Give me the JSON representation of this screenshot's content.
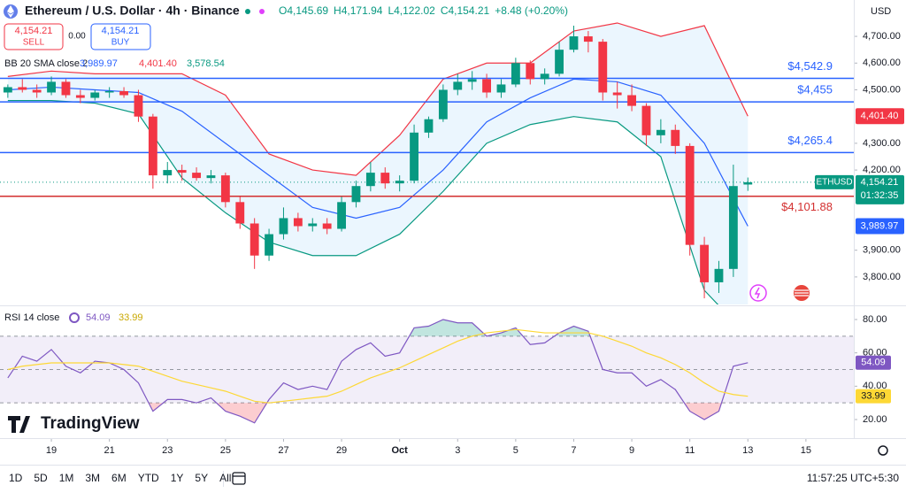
{
  "chart_data": [
    {
      "type": "candlestick",
      "title": "Ethereum / U.S. Dollar · 4h · Binance",
      "ohlc": [
        "O4,145.69",
        "H4,171.94",
        "L4,122.02",
        "C4,154.21",
        "+8.48 (+0.20%)"
      ],
      "currency": "USD",
      "trade": {
        "sell_price": "4,154.21",
        "sell": "SELL",
        "spread": "0.00",
        "buy_price": "4,154.21",
        "buy": "BUY"
      },
      "up_color": "#089981",
      "down_color": "#f23645",
      "xlim": [
        0.23,
        29.65
      ],
      "xticks": [
        {
          "value": 2,
          "label": "19"
        },
        {
          "value": 4,
          "label": "21"
        },
        {
          "value": 6,
          "label": "23"
        },
        {
          "value": 8,
          "label": "25"
        },
        {
          "value": 10,
          "label": "27"
        },
        {
          "value": 12,
          "label": "29"
        },
        {
          "value": 14,
          "label": "Oct"
        },
        {
          "value": 16,
          "label": "3"
        },
        {
          "value": 18,
          "label": "5"
        },
        {
          "value": 20,
          "label": "7"
        },
        {
          "value": 22,
          "label": "9"
        },
        {
          "value": 24,
          "label": "11"
        },
        {
          "value": 26,
          "label": "13"
        },
        {
          "value": 28,
          "label": "15"
        }
      ],
      "ylim": [
        3697,
        4836
      ],
      "yticks": [
        {
          "value": 3800,
          "label": "3,800.00"
        },
        {
          "value": 3900,
          "label": "3,900.00"
        },
        {
          "value": 4200,
          "label": "4,200.00"
        },
        {
          "value": 4300,
          "label": "4,300.00"
        },
        {
          "value": 4500,
          "label": "4,500.00"
        },
        {
          "value": 4600,
          "label": "4,600.00"
        },
        {
          "value": 4700,
          "label": "4,700.00"
        }
      ],
      "x": [
        0.5,
        1,
        1.5,
        2,
        2.5,
        3,
        3.5,
        4,
        4.5,
        5,
        5.5,
        6,
        6.5,
        7,
        7.5,
        8,
        8.5,
        9,
        9.5,
        10,
        10.5,
        11,
        11.5,
        12,
        12.5,
        13,
        13.5,
        14,
        14.5,
        15,
        15.5,
        16,
        16.5,
        17,
        17.5,
        18,
        18.5,
        19,
        19.5,
        20,
        20.5,
        21,
        21.5,
        22,
        22.5,
        23,
        23.5,
        24,
        24.5,
        25,
        25.5,
        26
      ],
      "open": [
        4490,
        4510,
        4500,
        4490,
        4530,
        4480,
        4470,
        4490,
        4495,
        4480,
        4400,
        4180,
        4200,
        4190,
        4170,
        4180,
        4080,
        4000,
        3880,
        3960,
        4020,
        3990,
        4000,
        3980,
        4080,
        4140,
        4190,
        4150,
        4160,
        4340,
        4390,
        4500,
        4530,
        4540,
        4490,
        4520,
        4600,
        4540,
        4560,
        4650,
        4700,
        4680,
        4490,
        4480,
        4440,
        4330,
        4350,
        4290,
        3920,
        3780,
        3830,
        4145.69
      ],
      "high": [
        4520,
        4540,
        4520,
        4550,
        4540,
        4500,
        4500,
        4510,
        4510,
        4500,
        4410,
        4230,
        4220,
        4210,
        4200,
        4190,
        4100,
        4020,
        3980,
        4060,
        4040,
        4020,
        4020,
        4100,
        4160,
        4230,
        4210,
        4180,
        4370,
        4400,
        4520,
        4560,
        4570,
        4560,
        4540,
        4620,
        4610,
        4580,
        4680,
        4740,
        4720,
        4690,
        4530,
        4520,
        4450,
        4390,
        4370,
        4300,
        3950,
        3860,
        4220,
        4171.94
      ],
      "low": [
        4470,
        4490,
        4470,
        4480,
        4470,
        4450,
        4460,
        4470,
        4470,
        4380,
        4130,
        4150,
        4160,
        4160,
        4150,
        4060,
        3980,
        3830,
        3860,
        3940,
        3970,
        3970,
        3960,
        3970,
        4060,
        4120,
        4130,
        4120,
        4150,
        4320,
        4380,
        4480,
        4500,
        4470,
        4470,
        4510,
        4520,
        4520,
        4550,
        4640,
        4640,
        4460,
        4430,
        4420,
        4290,
        4300,
        4260,
        3880,
        3720,
        3740,
        3800,
        4122.02
      ],
      "close": [
        4510,
        4500,
        4490,
        4530,
        4480,
        4470,
        4490,
        4495,
        4480,
        4400,
        4180,
        4200,
        4190,
        4170,
        4180,
        4080,
        4000,
        3880,
        3960,
        4020,
        3990,
        4000,
        3980,
        4080,
        4140,
        4190,
        4150,
        4160,
        4340,
        4390,
        4500,
        4530,
        4540,
        4490,
        4520,
        4600,
        4540,
        4560,
        4650,
        4700,
        4680,
        4490,
        4480,
        4440,
        4330,
        4350,
        4290,
        3920,
        3780,
        3830,
        4140,
        4154.21
      ],
      "bands": {
        "title": "BB 20 SMA close 2",
        "fill": "rgba(33,150,243,0.09)",
        "x": [
          0.5,
          2,
          3.5,
          5,
          6.5,
          8,
          9.5,
          11,
          12.5,
          14,
          15.5,
          17,
          18.5,
          20,
          21.5,
          23,
          24.5,
          26
        ],
        "middle": {
          "color": "#2962ff",
          "label": "3,989.97",
          "values": [
            4500,
            4510,
            4500,
            4490,
            4420,
            4300,
            4180,
            4060,
            4020,
            4060,
            4200,
            4380,
            4470,
            4540,
            4530,
            4480,
            4300,
            3989.97
          ]
        },
        "upper": {
          "color": "#f23645",
          "label": "4,401.40",
          "values": [
            4550,
            4570,
            4560,
            4560,
            4560,
            4480,
            4260,
            4200,
            4180,
            4330,
            4540,
            4600,
            4600,
            4720,
            4750,
            4700,
            4740,
            4401.4
          ]
        },
        "lower": {
          "color": "#089981",
          "label": "3,578.54",
          "values": [
            4460,
            4460,
            4450,
            4410,
            4170,
            4040,
            3930,
            3880,
            3880,
            3960,
            4120,
            4300,
            4370,
            4400,
            4380,
            4250,
            3750,
            3578.54
          ]
        }
      },
      "levels": [
        {
          "value": 4542.9,
          "label": "$4,542.9",
          "color": "#2962ff"
        },
        {
          "value": 4455,
          "label": "$4,455",
          "color": "#2962ff"
        },
        {
          "value": 4265.4,
          "label": "$4,265.4",
          "color": "#2962ff"
        },
        {
          "value": 4101.88,
          "label": "$4,101.88",
          "color": "#d32f2f"
        }
      ],
      "last": {
        "symbol": "ETHUSD",
        "value": 4154.21,
        "label": "4,154.21",
        "timer": "01:32:35",
        "color": "#089981"
      }
    },
    {
      "type": "line",
      "title": "RSI 14 close",
      "xlim": [
        0.23,
        29.65
      ],
      "ylim": [
        10.45,
        86.9
      ],
      "yticks": [
        {
          "value": 20,
          "label": "20.00"
        },
        {
          "value": 40,
          "label": "40.00"
        },
        {
          "value": 60,
          "label": "60.00"
        },
        {
          "value": 80,
          "label": "80.00"
        }
      ],
      "levels": [
        70,
        50,
        30
      ],
      "band_fill": "rgba(126,87,194,0.1)",
      "x": [
        0.5,
        1,
        1.5,
        2,
        2.5,
        3,
        3.5,
        4,
        4.5,
        5,
        5.5,
        6,
        6.5,
        7,
        7.5,
        8,
        8.5,
        9,
        9.5,
        10,
        10.5,
        11,
        11.5,
        12,
        12.5,
        13,
        13.5,
        14,
        14.5,
        15,
        15.5,
        16,
        16.5,
        17,
        17.5,
        18,
        18.5,
        19,
        19.5,
        20,
        20.5,
        21,
        21.5,
        22,
        22.5,
        23,
        23.5,
        24,
        24.5,
        25,
        25.5,
        26
      ],
      "series": [
        {
          "color": "#7e57c2",
          "label": "54.09",
          "values": [
            45,
            58,
            55,
            62,
            52,
            48,
            55,
            54,
            50,
            42,
            25,
            32,
            32,
            30,
            33,
            25,
            22,
            18,
            32,
            42,
            38,
            40,
            38,
            55,
            62,
            66,
            58,
            60,
            75,
            76,
            80,
            78,
            78,
            70,
            72,
            75,
            65,
            66,
            72,
            76,
            73,
            50,
            48,
            48,
            40,
            44,
            38,
            25,
            20,
            25,
            52,
            54.09
          ]
        },
        {
          "color": "#fdd835",
          "label": "33.99",
          "values": [
            50,
            52,
            53,
            54,
            54,
            54,
            54,
            54,
            53,
            52,
            49,
            46,
            43,
            41,
            39,
            37,
            34,
            31,
            30,
            31,
            32,
            33,
            34,
            37,
            41,
            45,
            48,
            51,
            55,
            59,
            63,
            67,
            70,
            72,
            73,
            74,
            73,
            72,
            72,
            72,
            72,
            70,
            67,
            64,
            60,
            57,
            53,
            48,
            42,
            37,
            35,
            33.99
          ]
        }
      ]
    }
  ],
  "brand": "TradingView",
  "toolbar": {
    "ranges": [
      "1D",
      "5D",
      "1M",
      "3M",
      "6M",
      "YTD",
      "1Y",
      "5Y",
      "All"
    ],
    "clock": "11:57:25 UTC+5:30"
  }
}
